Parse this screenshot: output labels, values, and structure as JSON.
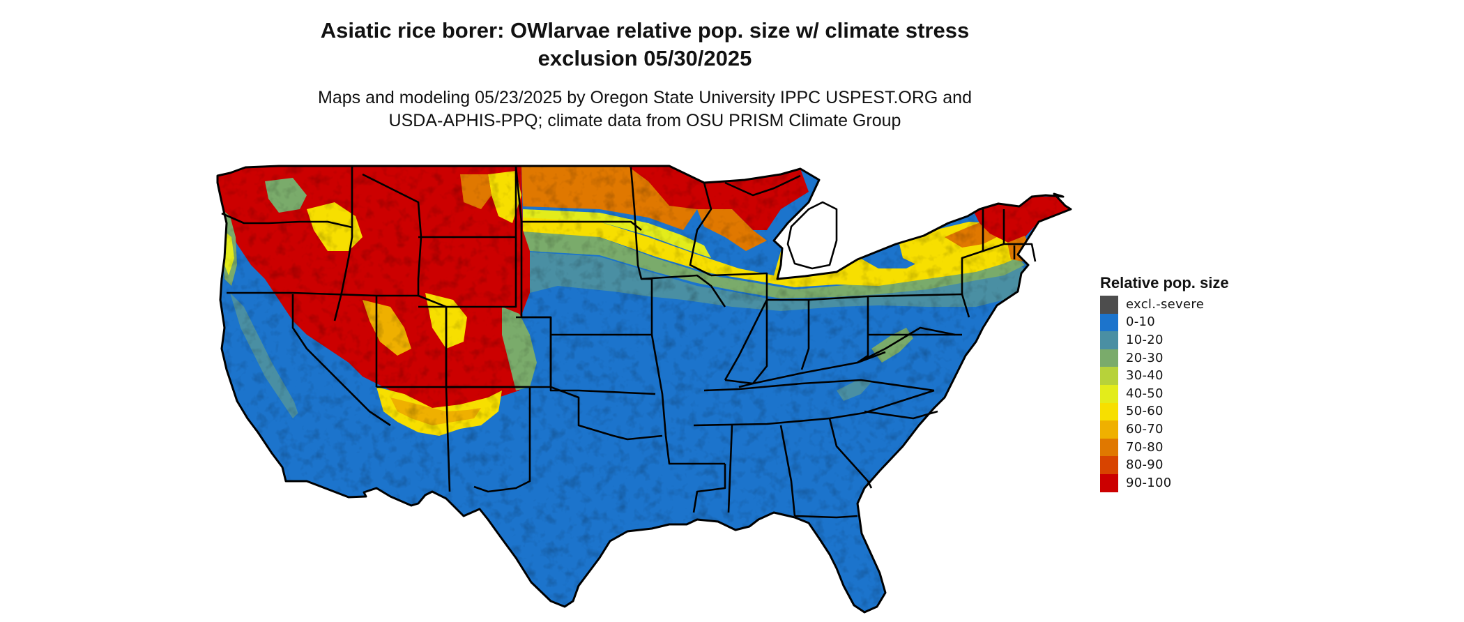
{
  "title": {
    "line1": "Asiatic rice borer: OWlarvae relative pop. size w/ climate stress",
    "line2": "exclusion 05/30/2025"
  },
  "subtitle": {
    "line1": "Maps and modeling 05/23/2025 by Oregon State University IPPC USPEST.ORG and",
    "line2": "USDA-APHIS-PPQ; climate data from OSU PRISM Climate Group"
  },
  "legend": {
    "title": "Relative pop. size",
    "items": [
      {
        "label": "excl.-severe",
        "color": "#4d4d4d"
      },
      {
        "label": "0-10",
        "color": "#1c74cc"
      },
      {
        "label": "10-20",
        "color": "#4a8fa3"
      },
      {
        "label": "20-30",
        "color": "#7aab6b"
      },
      {
        "label": "30-40",
        "color": "#b7d23a"
      },
      {
        "label": "40-50",
        "color": "#e3ec1b"
      },
      {
        "label": "50-60",
        "color": "#f7df00"
      },
      {
        "label": "60-70",
        "color": "#efb000"
      },
      {
        "label": "70-80",
        "color": "#e07800"
      },
      {
        "label": "80-90",
        "color": "#d84400"
      },
      {
        "label": "90-100",
        "color": "#cc0000"
      }
    ]
  },
  "colors": {
    "state_border": "#000000",
    "background": "#ffffff"
  }
}
